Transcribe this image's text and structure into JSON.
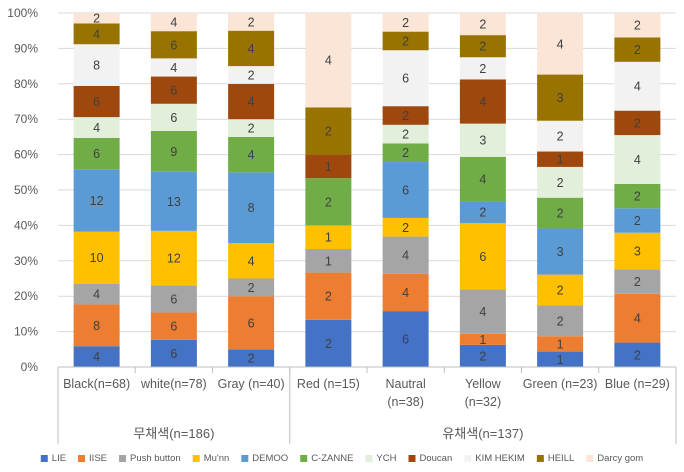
{
  "chart_data": {
    "type": "bar",
    "stacked": true,
    "normalized": true,
    "yticks": [
      "0%",
      "10%",
      "20%",
      "30%",
      "40%",
      "50%",
      "60%",
      "70%",
      "80%",
      "90%",
      "100%"
    ],
    "ylim": [
      0,
      100
    ],
    "categories": [
      {
        "line1": "Black(n=68)",
        "line2": ""
      },
      {
        "line1": "white(n=78)",
        "line2": ""
      },
      {
        "line1": "Gray (n=40)",
        "line2": ""
      },
      {
        "line1": "Red (n=15)",
        "line2": ""
      },
      {
        "line1": "Nautral",
        "line2": "(n=38)"
      },
      {
        "line1": "Yellow",
        "line2": "(n=32)"
      },
      {
        "line1": "Green (n=23)",
        "line2": ""
      },
      {
        "line1": "Blue (n=29)",
        "line2": ""
      }
    ],
    "groups": [
      {
        "label": "무채색(n=186)",
        "span": [
          0,
          2
        ]
      },
      {
        "label": "유채색(n=137)",
        "span": [
          3,
          7
        ]
      }
    ],
    "series": [
      {
        "name": "LIE",
        "color": "#4472C4",
        "values": [
          4,
          6,
          2,
          2,
          6,
          2,
          1,
          2
        ]
      },
      {
        "name": "IISE",
        "color": "#ED7D31",
        "values": [
          8,
          6,
          6,
          2,
          4,
          1,
          1,
          4
        ]
      },
      {
        "name": "Push button",
        "color": "#A5A5A5",
        "values": [
          4,
          6,
          2,
          1,
          4,
          4,
          2,
          2
        ]
      },
      {
        "name": "Mu'nn",
        "color": "#FFC000",
        "values": [
          10,
          12,
          4,
          1,
          2,
          6,
          2,
          3
        ]
      },
      {
        "name": "DEMOO",
        "color": "#5B9BD5",
        "values": [
          12,
          13,
          8,
          0,
          6,
          2,
          3,
          2
        ]
      },
      {
        "name": "C-ZANNE",
        "color": "#70AD47",
        "values": [
          6,
          9,
          4,
          2,
          2,
          4,
          2,
          2
        ]
      },
      {
        "name": "YCH",
        "color": "#E2EFDA",
        "values": [
          4,
          6,
          2,
          0,
          2,
          3,
          2,
          4
        ]
      },
      {
        "name": "Doucan",
        "color": "#9E480E",
        "values": [
          6,
          6,
          4,
          1,
          2,
          4,
          1,
          2
        ]
      },
      {
        "name": "KIM HEKIM",
        "color": "#F2F2F2",
        "values": [
          8,
          4,
          2,
          0,
          6,
          2,
          2,
          4
        ]
      },
      {
        "name": "HEILL",
        "color": "#997300",
        "values": [
          4,
          6,
          4,
          2,
          2,
          2,
          3,
          2
        ]
      },
      {
        "name": "Darcy gom",
        "color": "#FBE5D6",
        "values": [
          2,
          4,
          2,
          4,
          2,
          2,
          4,
          2
        ]
      }
    ]
  }
}
